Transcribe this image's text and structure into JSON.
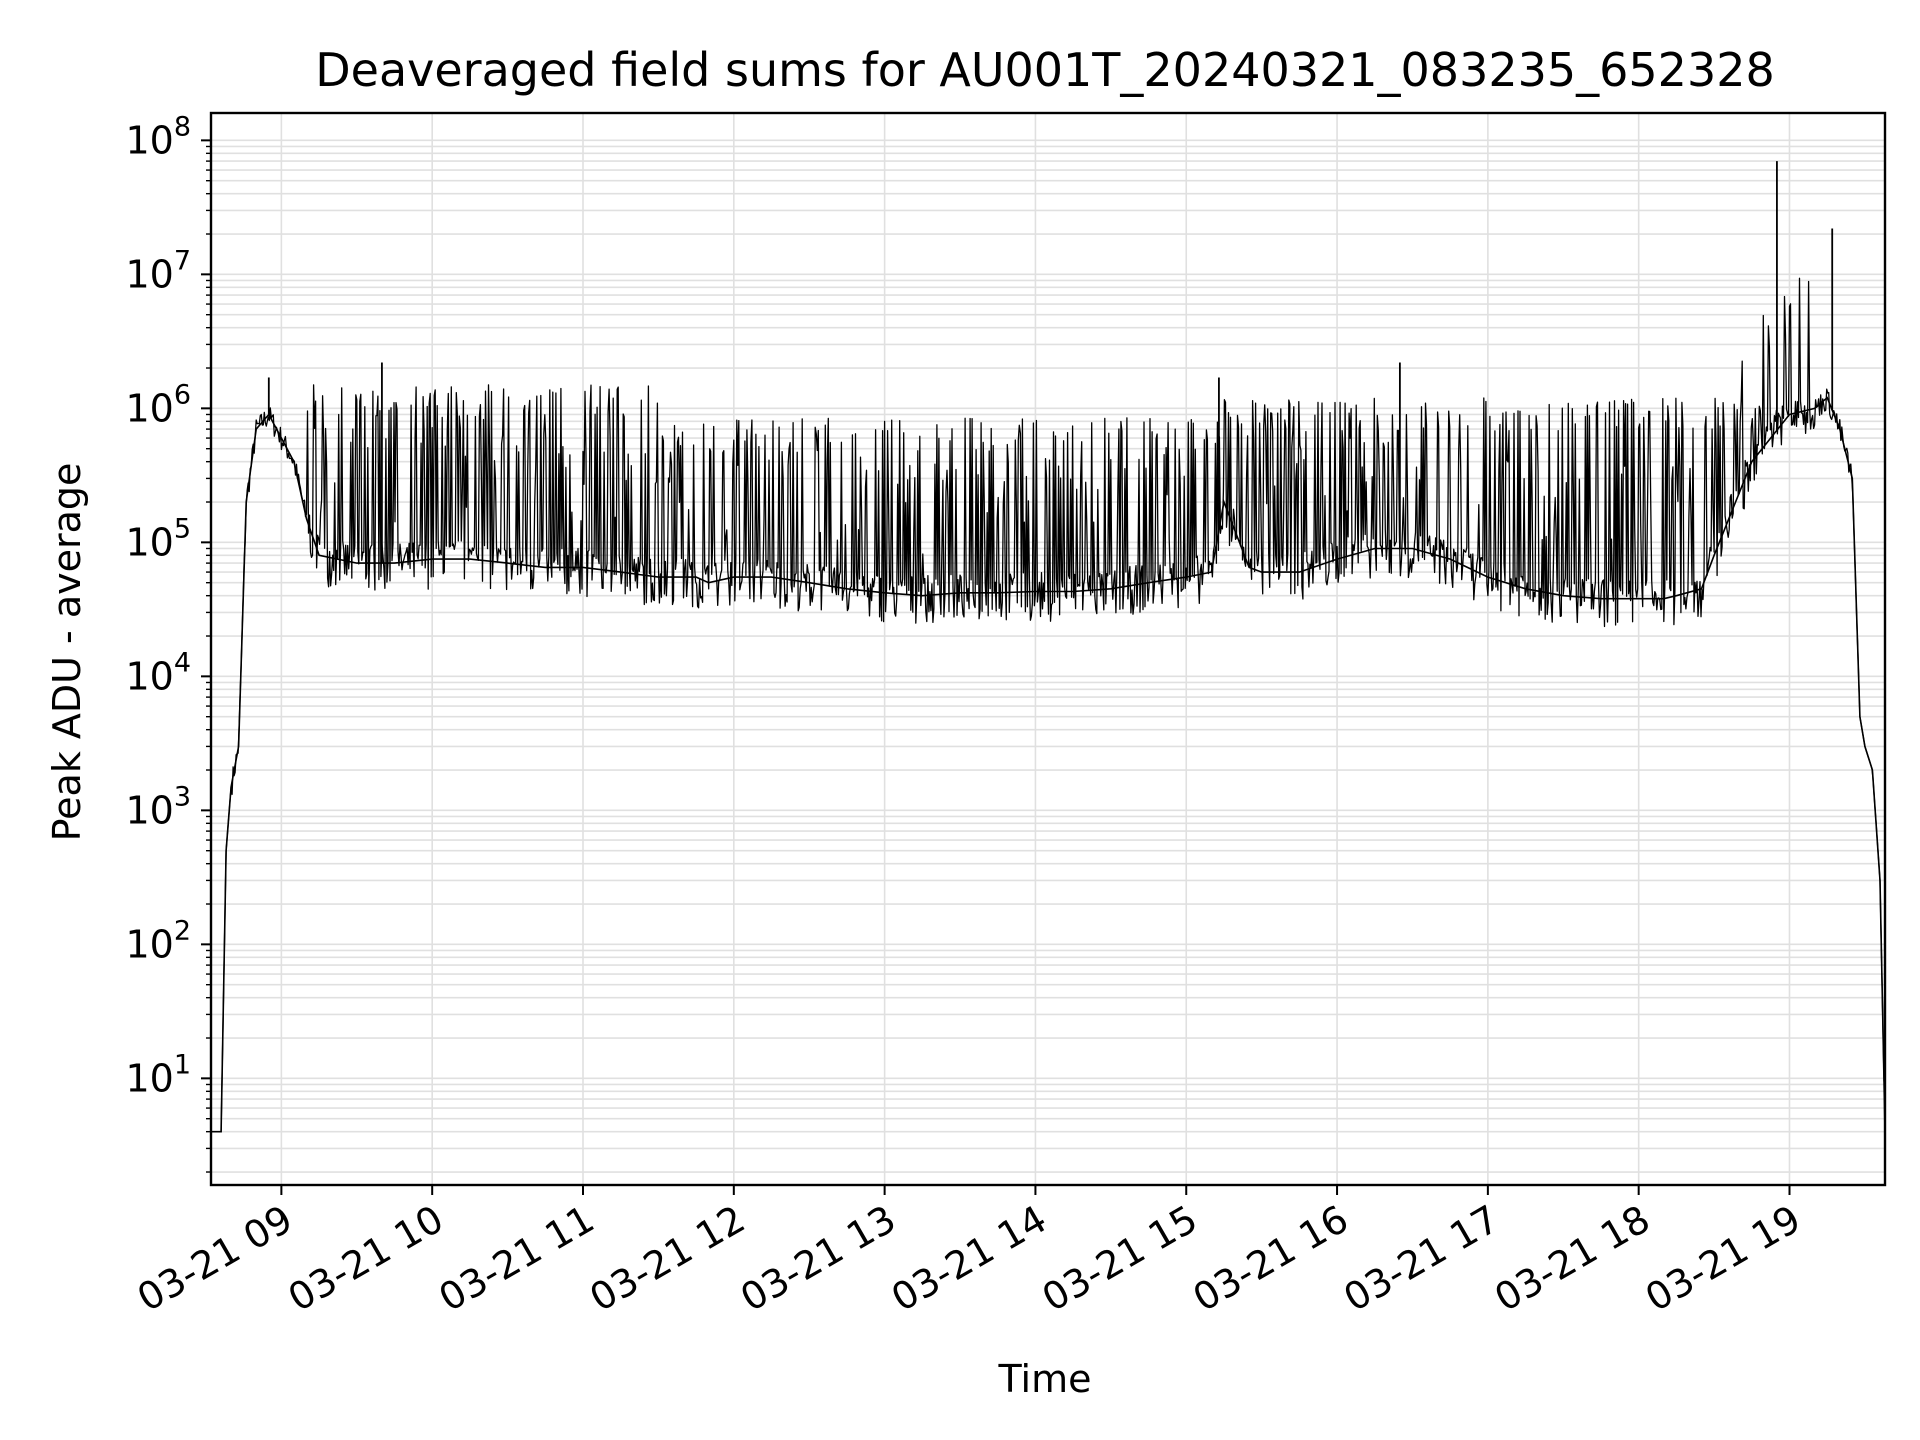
{
  "chart_data": {
    "type": "line",
    "title": "Deaveraged field sums for AU001T_20240321_083235_652328",
    "xlabel": "Time",
    "ylabel": "Peak ADU - average",
    "x_ticks": [
      "03-21 09",
      "03-21 10",
      "03-21 11",
      "03-21 12",
      "03-21 13",
      "03-21 14",
      "03-21 15",
      "03-21 16",
      "03-21 17",
      "03-21 18",
      "03-21 19"
    ],
    "y_ticks": [
      {
        "base": "10",
        "exp": "1"
      },
      {
        "base": "10",
        "exp": "2"
      },
      {
        "base": "10",
        "exp": "3"
      },
      {
        "base": "10",
        "exp": "4"
      },
      {
        "base": "10",
        "exp": "5"
      },
      {
        "base": "10",
        "exp": "6"
      },
      {
        "base": "10",
        "exp": "7"
      },
      {
        "base": "10",
        "exp": "8"
      }
    ],
    "y_scale": "log",
    "xlim": [
      "03-21 08:32",
      "03-21 19:38"
    ],
    "ylim": [
      1.6,
      160000000
    ],
    "grid": true,
    "line_color": "#000000",
    "grid_color": "#e0e0e0",
    "series": [
      {
        "x": [
          "08:32",
          "08:34",
          "08:36",
          "08:38",
          "08:40",
          "08:43",
          "08:46",
          "08:50",
          "08:55",
          "09:00",
          "09:05",
          "09:10",
          "09:15",
          "09:30",
          "09:45",
          "10:00",
          "10:15",
          "10:30",
          "10:45",
          "11:00",
          "11:15",
          "11:30",
          "11:45",
          "11:50",
          "12:00",
          "12:15",
          "12:30",
          "12:45",
          "13:00",
          "13:15",
          "13:30",
          "13:45",
          "14:00",
          "14:15",
          "14:30",
          "14:45",
          "15:00",
          "15:10",
          "15:15",
          "15:25",
          "15:30",
          "15:45",
          "16:00",
          "16:15",
          "16:30",
          "16:45",
          "17:00",
          "17:15",
          "17:30",
          "17:45",
          "18:00",
          "18:10",
          "18:15",
          "18:25",
          "18:30",
          "18:45",
          "19:00",
          "19:10",
          "19:15",
          "19:20",
          "19:25",
          "19:28",
          "19:30",
          "19:33",
          "19:36",
          "19:38"
        ],
        "y": [
          4,
          4,
          4,
          500,
          1500,
          3000,
          200000,
          700000,
          900000,
          600000,
          400000,
          150000,
          80000,
          70000,
          70000,
          75000,
          75000,
          70000,
          65000,
          65000,
          60000,
          55000,
          55000,
          50000,
          55000,
          55000,
          50000,
          45000,
          42000,
          40000,
          42000,
          42000,
          43000,
          43000,
          45000,
          50000,
          55000,
          60000,
          200000,
          65000,
          60000,
          60000,
          75000,
          90000,
          90000,
          75000,
          55000,
          45000,
          40000,
          38000,
          38000,
          38000,
          40000,
          45000,
          80000,
          400000,
          900000,
          1000000,
          1200000,
          700000,
          300000,
          5000,
          3000,
          2000,
          300,
          4
        ]
      }
    ],
    "spikes": {
      "x": [
        "18:55",
        "19:17",
        "09:40",
        "16:25",
        "15:13",
        "08:55"
      ],
      "y": [
        70000000,
        22000000,
        2200000,
        2200000,
        1700000,
        1700000
      ]
    }
  }
}
